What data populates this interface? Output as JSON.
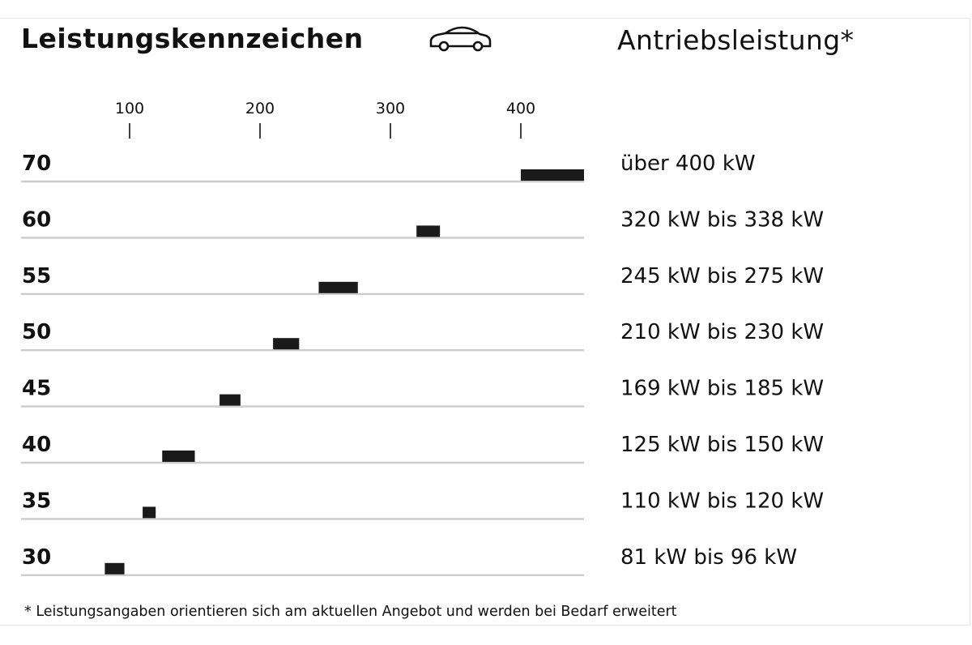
{
  "header": {
    "title": "Leistungskennzeichen",
    "car_icon": "car-icon",
    "subtitle": "Antriebsleistung*"
  },
  "footnote": "* Leistungsangaben orientieren sich am aktuellen Angebot und werden bei Bedarf erweitert",
  "colors": {
    "bar": "#1a1a1a",
    "row_line": "#cccccc",
    "text": "#111111"
  },
  "chart_data": {
    "type": "bar",
    "orientation": "horizontal-range",
    "xlim": [
      60,
      450
    ],
    "xticks": [
      100,
      200,
      300,
      400
    ],
    "tick_labels": [
      "100",
      "200",
      "300",
      "400"
    ],
    "grid": false,
    "categories": [
      "70",
      "60",
      "55",
      "50",
      "45",
      "40",
      "35",
      "30"
    ],
    "ranges": [
      [
        400,
        450
      ],
      [
        320,
        338
      ],
      [
        245,
        275
      ],
      [
        210,
        230
      ],
      [
        169,
        185
      ],
      [
        125,
        150
      ],
      [
        110,
        120
      ],
      [
        81,
        96
      ]
    ],
    "range_labels": [
      "über 400 kW",
      "320 kW bis 338 kW",
      "245 kW bis 275 kW",
      "210 kW bis 230 kW",
      "169 kW bis 185 kW",
      "125 kW bis 150 kW",
      "110 kW bis 120 kW",
      "81 kW bis 96 kW"
    ]
  }
}
